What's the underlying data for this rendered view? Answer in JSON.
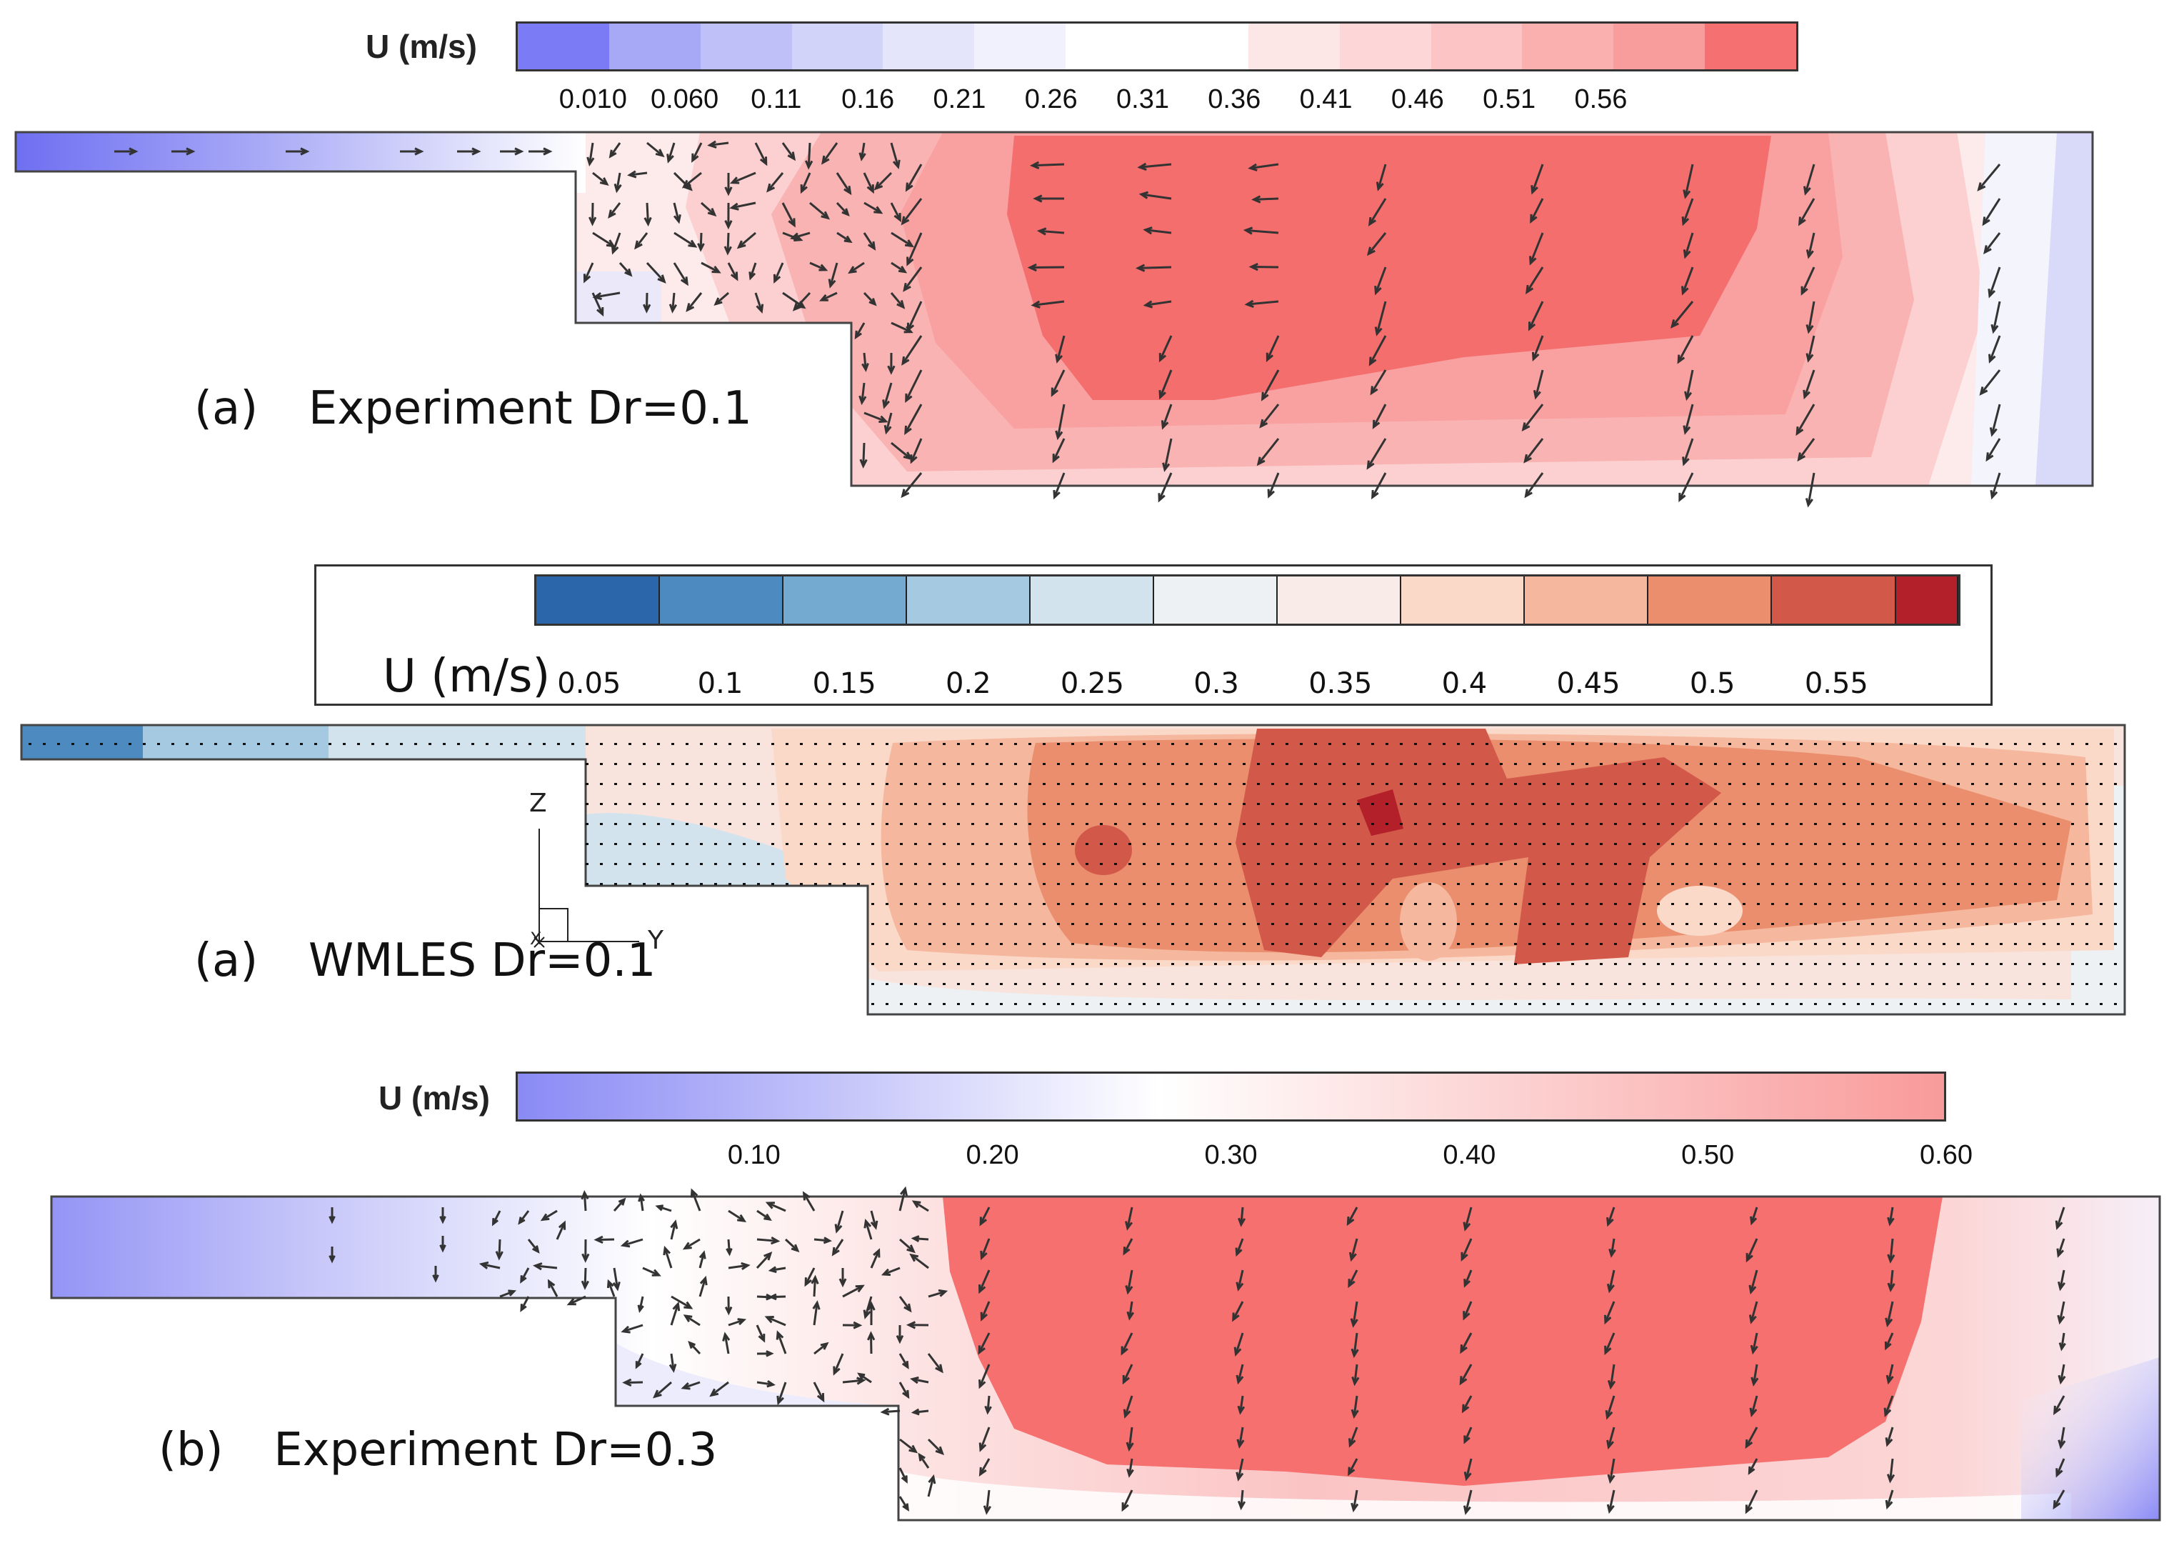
{
  "panel_a_experiment": {
    "colorbar_title": "U (m/s)",
    "ticks": [
      "0.010",
      "0.060",
      "0.11",
      "0.16",
      "0.21",
      "0.26",
      "0.31",
      "0.36",
      "0.41",
      "0.46",
      "0.51",
      "0.56"
    ],
    "segment_colors": [
      "#7b7bf5",
      "#a7a8f6",
      "#bfc0f7",
      "#d2d3f9",
      "#e4e4fb",
      "#f1f1fd",
      "#ffffff",
      "#ffffff",
      "#fde6e6",
      "#fdd7d7",
      "#fcc4c4",
      "#fbb0b0",
      "#f99c9c",
      "#f57070"
    ],
    "caption_label": "(a)",
    "caption_text": "Experiment Dr=0.1"
  },
  "panel_a_wmles": {
    "colorbar_title": "U (m/s)",
    "ticks": [
      "0.05",
      "0.1",
      "0.15",
      "0.2",
      "0.25",
      "0.3",
      "0.35",
      "0.4",
      "0.45",
      "0.5",
      "0.55"
    ],
    "segment_colors": [
      "#2b66aa",
      "#4d8ac0",
      "#74a9d0",
      "#a5c9e0",
      "#d2e3ee",
      "#eef1f4",
      "#f9ece8",
      "#fbd9c9",
      "#f5b79d",
      "#ea8e6d",
      "#d25849",
      "#b4202a"
    ],
    "axis_z": "Z",
    "axis_y": "Y",
    "axis_x": "X",
    "caption_label": "(a)",
    "caption_text": "WMLES Dr=0.1"
  },
  "panel_b_experiment": {
    "colorbar_title": "U (m/s)",
    "ticks": [
      "0.10",
      "0.20",
      "0.30",
      "0.40",
      "0.50",
      "0.60"
    ],
    "colors": {
      "low": "#8a8af5",
      "mid": "#ffffff",
      "high": "#f99a9a"
    },
    "caption_label": "(b)",
    "caption_text": "Experiment Dr=0.3"
  },
  "colors": {
    "exp_core": "#f56e6e",
    "exp_ring1": "#f9a7a7",
    "exp_ring2": "#fcc9c9",
    "wmles_core": "#d25849",
    "wmles_mid": "#ea8e6d",
    "wmles_peak": "#b4202a"
  }
}
